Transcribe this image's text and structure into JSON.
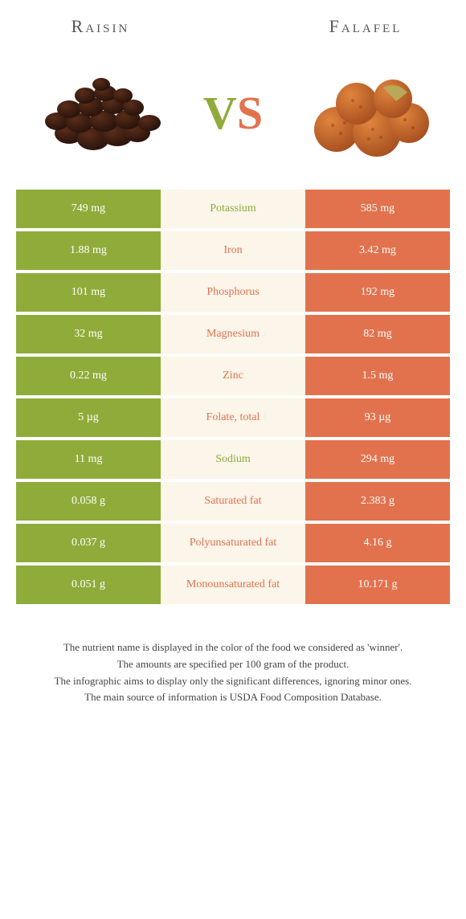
{
  "foods": {
    "left": {
      "name": "Raisin",
      "color": "#8fac3a"
    },
    "right": {
      "name": "Falafel",
      "color": "#e2724e"
    }
  },
  "vs": {
    "v": "V",
    "s": "S"
  },
  "midBg": "#fbf5ea",
  "nutrients": [
    {
      "name": "Potassium",
      "left": "749 mg",
      "right": "585 mg",
      "winner": "left"
    },
    {
      "name": "Iron",
      "left": "1.88 mg",
      "right": "3.42 mg",
      "winner": "right"
    },
    {
      "name": "Phosphorus",
      "left": "101 mg",
      "right": "192 mg",
      "winner": "right"
    },
    {
      "name": "Magnesium",
      "left": "32 mg",
      "right": "82 mg",
      "winner": "right"
    },
    {
      "name": "Zinc",
      "left": "0.22 mg",
      "right": "1.5 mg",
      "winner": "right"
    },
    {
      "name": "Folate, total",
      "left": "5 µg",
      "right": "93 µg",
      "winner": "right"
    },
    {
      "name": "Sodium",
      "left": "11 mg",
      "right": "294 mg",
      "winner": "left"
    },
    {
      "name": "Saturated fat",
      "left": "0.058 g",
      "right": "2.383 g",
      "winner": "right"
    },
    {
      "name": "Polyunsaturated fat",
      "left": "0.037 g",
      "right": "4.16 g",
      "winner": "right"
    },
    {
      "name": "Monounsaturated fat",
      "left": "0.051 g",
      "right": "10.171 g",
      "winner": "right"
    }
  ],
  "footnotes": [
    "The nutrient name is displayed in the color of the food we considered as 'winner'.",
    "The amounts are specified per 100 gram of the product.",
    "The infographic aims to display only the significant differences, ignoring minor ones.",
    "The main source of information is USDA Food Composition Database."
  ],
  "images": {
    "raisin": {
      "baseColor": "#3a1e12",
      "highlight": "#5a2d19"
    },
    "falafel": {
      "baseColor": "#c96b2e",
      "highlight": "#e0843d",
      "interior": "#b9a85a"
    }
  }
}
